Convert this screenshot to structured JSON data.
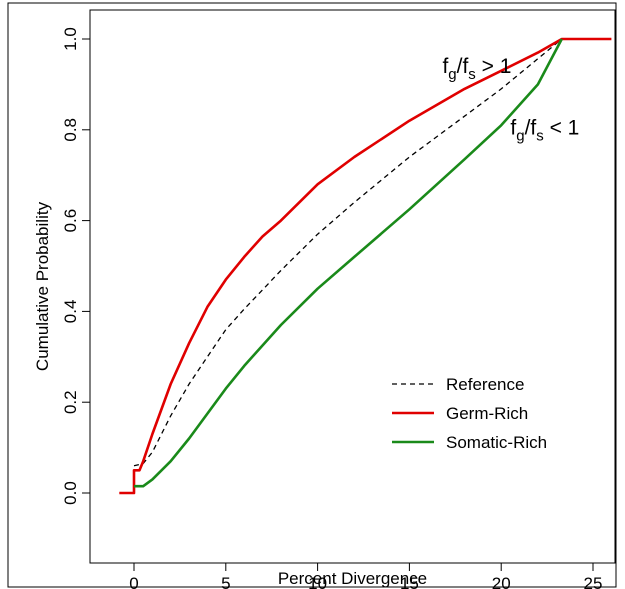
{
  "chart_data": {
    "type": "line",
    "xlabel": "Percent Divergence",
    "ylabel": "Cumulative Probability",
    "xlim": [
      -1,
      26
    ],
    "ylim": [
      0,
      1
    ],
    "x_ticks": [
      "0",
      "5",
      "10",
      "15",
      "20",
      "25"
    ],
    "y_ticks": [
      "0.0",
      "0.2",
      "0.4",
      "0.6",
      "0.8",
      "1.0"
    ],
    "x_tick_values": [
      0,
      5,
      10,
      15,
      20,
      25
    ],
    "y_tick_values": [
      0,
      0.2,
      0.4,
      0.6,
      0.8,
      1.0
    ],
    "grid": false,
    "legend_position": "bottom-right",
    "series": [
      {
        "name": "Reference",
        "color": "#000000",
        "style": "dashed",
        "x": [
          0,
          0.5,
          1,
          2,
          3,
          4,
          5,
          6,
          8,
          10,
          12,
          15,
          18,
          20,
          23.3
        ],
        "y": [
          0.06,
          0.065,
          0.09,
          0.17,
          0.24,
          0.3,
          0.36,
          0.405,
          0.49,
          0.57,
          0.64,
          0.74,
          0.83,
          0.89,
          1.0
        ]
      },
      {
        "name": "Germ-Rich",
        "color": "#e00000",
        "style": "solid",
        "x": [
          -0.8,
          0,
          0,
          0.3,
          0.5,
          1,
          2,
          3,
          4,
          5,
          6,
          7,
          8,
          10,
          12,
          15,
          18,
          20,
          22,
          23.3,
          26
        ],
        "y": [
          0,
          0,
          0.05,
          0.05,
          0.07,
          0.13,
          0.24,
          0.33,
          0.41,
          0.47,
          0.52,
          0.565,
          0.6,
          0.68,
          0.74,
          0.82,
          0.89,
          0.93,
          0.97,
          1.0,
          1.0
        ]
      },
      {
        "name": "Somatic-Rich",
        "color": "#1a8a1a",
        "style": "solid",
        "x": [
          0,
          0.5,
          1,
          2,
          3,
          4,
          5,
          6,
          8,
          10,
          12,
          15,
          18,
          20,
          22,
          23.3
        ],
        "y": [
          0.015,
          0.015,
          0.03,
          0.07,
          0.12,
          0.175,
          0.23,
          0.28,
          0.37,
          0.45,
          0.52,
          0.625,
          0.735,
          0.81,
          0.9,
          1.0
        ]
      }
    ],
    "annotations": [
      {
        "x": 16.8,
        "y": 0.925,
        "prefix": "f",
        "sub1": "g",
        "mid": "/f",
        "sub2": "s",
        "suffix": " > 1"
      },
      {
        "x": 20.5,
        "y": 0.79,
        "prefix": "f",
        "sub1": "g",
        "mid": "/f",
        "sub2": "s",
        "suffix": " < 1"
      }
    ]
  }
}
